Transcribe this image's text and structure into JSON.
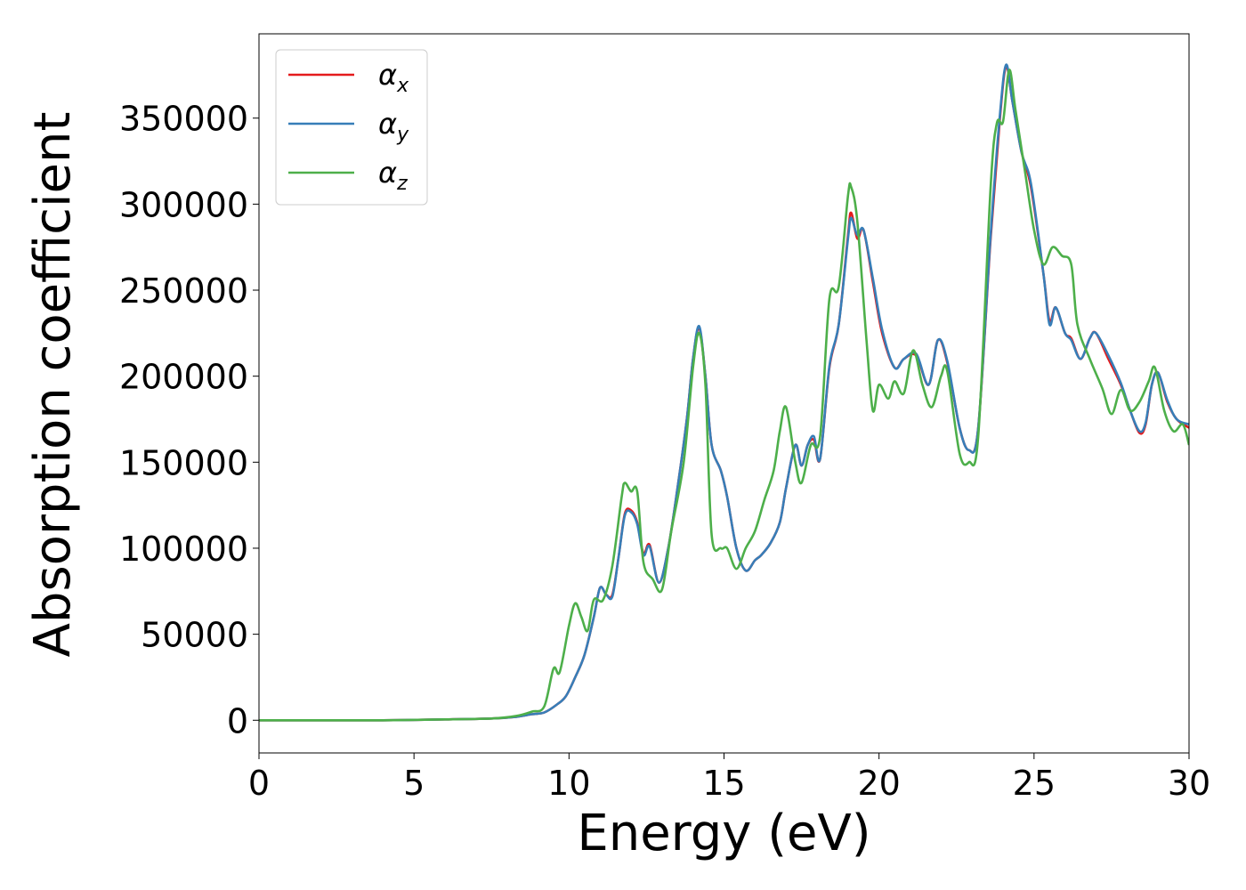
{
  "chart_data": {
    "type": "line",
    "title": "",
    "xlabel": "Energy (eV)",
    "ylabel": "Absorption coefficient",
    "xlim": [
      0,
      30
    ],
    "ylim": [
      -19000,
      399000
    ],
    "xticks": [
      0,
      5,
      10,
      15,
      20,
      25,
      30
    ],
    "xtick_labels": [
      "0",
      "5",
      "10",
      "15",
      "20",
      "25",
      "30"
    ],
    "yticks": [
      0,
      50000,
      100000,
      150000,
      200000,
      250000,
      300000,
      350000
    ],
    "ytick_labels": [
      "0",
      "50000",
      "100000",
      "150000",
      "200000",
      "250000",
      "300000",
      "350000"
    ],
    "grid": false,
    "legend_position": "top-left",
    "series": [
      {
        "name": "α_x",
        "base": "α",
        "sub": "x",
        "color": "#e41a1c",
        "points": [
          [
            0,
            0
          ],
          [
            2,
            0
          ],
          [
            4,
            0
          ],
          [
            6,
            500
          ],
          [
            7.5,
            1000
          ],
          [
            8.3,
            2000
          ],
          [
            8.8,
            3500
          ],
          [
            9.2,
            4500
          ],
          [
            9.6,
            9000
          ],
          [
            9.9,
            14000
          ],
          [
            10.2,
            25000
          ],
          [
            10.5,
            38000
          ],
          [
            10.8,
            60000
          ],
          [
            11.0,
            77000
          ],
          [
            11.2,
            73000
          ],
          [
            11.4,
            73000
          ],
          [
            11.6,
            95000
          ],
          [
            11.8,
            120000
          ],
          [
            12.0,
            122000
          ],
          [
            12.2,
            115000
          ],
          [
            12.4,
            97000
          ],
          [
            12.6,
            102000
          ],
          [
            12.9,
            80000
          ],
          [
            13.2,
            100000
          ],
          [
            13.5,
            135000
          ],
          [
            13.8,
            175000
          ],
          [
            14.0,
            210000
          ],
          [
            14.2,
            228000
          ],
          [
            14.4,
            200000
          ],
          [
            14.6,
            160000
          ],
          [
            14.9,
            145000
          ],
          [
            15.1,
            130000
          ],
          [
            15.4,
            100000
          ],
          [
            15.7,
            87000
          ],
          [
            16.0,
            93000
          ],
          [
            16.2,
            96000
          ],
          [
            16.5,
            103000
          ],
          [
            16.8,
            115000
          ],
          [
            17.0,
            135000
          ],
          [
            17.3,
            160000
          ],
          [
            17.5,
            148000
          ],
          [
            17.7,
            160000
          ],
          [
            17.9,
            163000
          ],
          [
            18.1,
            152000
          ],
          [
            18.4,
            205000
          ],
          [
            18.7,
            230000
          ],
          [
            19.0,
            282000
          ],
          [
            19.1,
            295000
          ],
          [
            19.3,
            280000
          ],
          [
            19.5,
            285000
          ],
          [
            19.8,
            255000
          ],
          [
            20.1,
            225000
          ],
          [
            20.5,
            205000
          ],
          [
            20.8,
            210000
          ],
          [
            21.2,
            212000
          ],
          [
            21.6,
            195000
          ],
          [
            21.9,
            221000
          ],
          [
            22.2,
            208000
          ],
          [
            22.6,
            170000
          ],
          [
            22.9,
            157000
          ],
          [
            23.2,
            170000
          ],
          [
            23.6,
            280000
          ],
          [
            23.9,
            350000
          ],
          [
            24.1,
            380000
          ],
          [
            24.3,
            360000
          ],
          [
            24.6,
            330000
          ],
          [
            24.9,
            310000
          ],
          [
            25.3,
            260000
          ],
          [
            25.5,
            232000
          ],
          [
            25.7,
            240000
          ],
          [
            26.0,
            225000
          ],
          [
            26.2,
            222000
          ],
          [
            26.5,
            210000
          ],
          [
            26.8,
            222000
          ],
          [
            27.0,
            225000
          ],
          [
            27.4,
            210000
          ],
          [
            27.8,
            195000
          ],
          [
            28.1,
            180000
          ],
          [
            28.4,
            167000
          ],
          [
            28.6,
            172000
          ],
          [
            28.8,
            195000
          ],
          [
            29.0,
            202000
          ],
          [
            29.3,
            185000
          ],
          [
            29.6,
            175000
          ],
          [
            30.0,
            170000
          ]
        ]
      },
      {
        "name": "α_y",
        "base": "α",
        "sub": "y",
        "color": "#377eb8",
        "points": [
          [
            0,
            0
          ],
          [
            2,
            0
          ],
          [
            4,
            0
          ],
          [
            6,
            500
          ],
          [
            7.5,
            1000
          ],
          [
            8.3,
            2000
          ],
          [
            8.8,
            3500
          ],
          [
            9.2,
            4500
          ],
          [
            9.6,
            9000
          ],
          [
            9.9,
            14000
          ],
          [
            10.2,
            25000
          ],
          [
            10.5,
            38000
          ],
          [
            10.8,
            60000
          ],
          [
            11.0,
            77000
          ],
          [
            11.2,
            73000
          ],
          [
            11.4,
            72000
          ],
          [
            11.6,
            95000
          ],
          [
            11.8,
            119000
          ],
          [
            12.0,
            121000
          ],
          [
            12.2,
            114000
          ],
          [
            12.4,
            96000
          ],
          [
            12.6,
            101000
          ],
          [
            12.9,
            80000
          ],
          [
            13.2,
            100000
          ],
          [
            13.5,
            135000
          ],
          [
            13.8,
            175000
          ],
          [
            14.0,
            210000
          ],
          [
            14.2,
            229000
          ],
          [
            14.4,
            200000
          ],
          [
            14.6,
            160000
          ],
          [
            14.9,
            145000
          ],
          [
            15.1,
            130000
          ],
          [
            15.4,
            100000
          ],
          [
            15.7,
            87000
          ],
          [
            16.0,
            93000
          ],
          [
            16.2,
            96000
          ],
          [
            16.5,
            103000
          ],
          [
            16.8,
            115000
          ],
          [
            17.0,
            135000
          ],
          [
            17.3,
            160000
          ],
          [
            17.5,
            148000
          ],
          [
            17.7,
            160000
          ],
          [
            17.9,
            165000
          ],
          [
            18.1,
            152000
          ],
          [
            18.4,
            206000
          ],
          [
            18.7,
            230000
          ],
          [
            19.0,
            280000
          ],
          [
            19.1,
            292000
          ],
          [
            19.3,
            282000
          ],
          [
            19.5,
            285000
          ],
          [
            19.8,
            257000
          ],
          [
            20.1,
            227000
          ],
          [
            20.5,
            205000
          ],
          [
            20.8,
            210000
          ],
          [
            21.2,
            213000
          ],
          [
            21.6,
            195000
          ],
          [
            21.9,
            221000
          ],
          [
            22.2,
            209000
          ],
          [
            22.6,
            170000
          ],
          [
            22.9,
            157000
          ],
          [
            23.2,
            170000
          ],
          [
            23.6,
            282000
          ],
          [
            23.9,
            352000
          ],
          [
            24.1,
            381000
          ],
          [
            24.3,
            360000
          ],
          [
            24.6,
            330000
          ],
          [
            24.9,
            312000
          ],
          [
            25.3,
            260000
          ],
          [
            25.5,
            230000
          ],
          [
            25.7,
            240000
          ],
          [
            26.0,
            225000
          ],
          [
            26.2,
            221000
          ],
          [
            26.5,
            210000
          ],
          [
            26.8,
            222000
          ],
          [
            27.0,
            225000
          ],
          [
            27.4,
            212000
          ],
          [
            27.8,
            196000
          ],
          [
            28.1,
            180000
          ],
          [
            28.4,
            168000
          ],
          [
            28.6,
            173000
          ],
          [
            28.8,
            195000
          ],
          [
            29.0,
            202000
          ],
          [
            29.3,
            186000
          ],
          [
            29.6,
            175000
          ],
          [
            30.0,
            172000
          ]
        ]
      },
      {
        "name": "α_z",
        "base": "α",
        "sub": "z",
        "color": "#4daf4a",
        "points": [
          [
            0,
            0
          ],
          [
            2,
            0
          ],
          [
            4,
            0
          ],
          [
            6,
            500
          ],
          [
            7.5,
            1000
          ],
          [
            8.3,
            2500
          ],
          [
            8.8,
            5000
          ],
          [
            9.2,
            8000
          ],
          [
            9.5,
            30000
          ],
          [
            9.7,
            28000
          ],
          [
            10.0,
            55000
          ],
          [
            10.2,
            68000
          ],
          [
            10.4,
            60000
          ],
          [
            10.6,
            52000
          ],
          [
            10.8,
            70000
          ],
          [
            11.1,
            70000
          ],
          [
            11.4,
            90000
          ],
          [
            11.7,
            130000
          ],
          [
            11.8,
            138000
          ],
          [
            12.0,
            133000
          ],
          [
            12.2,
            133000
          ],
          [
            12.4,
            92000
          ],
          [
            12.7,
            82000
          ],
          [
            13.0,
            76000
          ],
          [
            13.3,
            110000
          ],
          [
            13.7,
            150000
          ],
          [
            14.0,
            205000
          ],
          [
            14.2,
            225000
          ],
          [
            14.4,
            195000
          ],
          [
            14.6,
            108000
          ],
          [
            14.9,
            100000
          ],
          [
            15.1,
            100000
          ],
          [
            15.4,
            88000
          ],
          [
            15.7,
            100000
          ],
          [
            16.0,
            110000
          ],
          [
            16.3,
            128000
          ],
          [
            16.6,
            145000
          ],
          [
            16.8,
            168000
          ],
          [
            17.0,
            182000
          ],
          [
            17.3,
            150000
          ],
          [
            17.5,
            138000
          ],
          [
            17.8,
            160000
          ],
          [
            18.1,
            165000
          ],
          [
            18.4,
            245000
          ],
          [
            18.7,
            252000
          ],
          [
            19.0,
            305000
          ],
          [
            19.1,
            310000
          ],
          [
            19.3,
            290000
          ],
          [
            19.6,
            220000
          ],
          [
            19.8,
            180000
          ],
          [
            20.0,
            195000
          ],
          [
            20.3,
            187000
          ],
          [
            20.5,
            197000
          ],
          [
            20.8,
            190000
          ],
          [
            21.1,
            215000
          ],
          [
            21.4,
            195000
          ],
          [
            21.7,
            182000
          ],
          [
            22.0,
            200000
          ],
          [
            22.2,
            203000
          ],
          [
            22.6,
            155000
          ],
          [
            22.9,
            150000
          ],
          [
            23.2,
            165000
          ],
          [
            23.6,
            310000
          ],
          [
            23.8,
            347000
          ],
          [
            24.0,
            348000
          ],
          [
            24.2,
            378000
          ],
          [
            24.4,
            355000
          ],
          [
            24.7,
            320000
          ],
          [
            25.0,
            285000
          ],
          [
            25.3,
            265000
          ],
          [
            25.6,
            275000
          ],
          [
            25.9,
            270000
          ],
          [
            26.2,
            265000
          ],
          [
            26.4,
            230000
          ],
          [
            26.8,
            210000
          ],
          [
            27.2,
            193000
          ],
          [
            27.5,
            178000
          ],
          [
            27.8,
            192000
          ],
          [
            28.1,
            180000
          ],
          [
            28.4,
            185000
          ],
          [
            28.7,
            197000
          ],
          [
            28.9,
            205000
          ],
          [
            29.2,
            180000
          ],
          [
            29.5,
            168000
          ],
          [
            29.8,
            172000
          ],
          [
            30.0,
            160000
          ]
        ]
      }
    ]
  }
}
